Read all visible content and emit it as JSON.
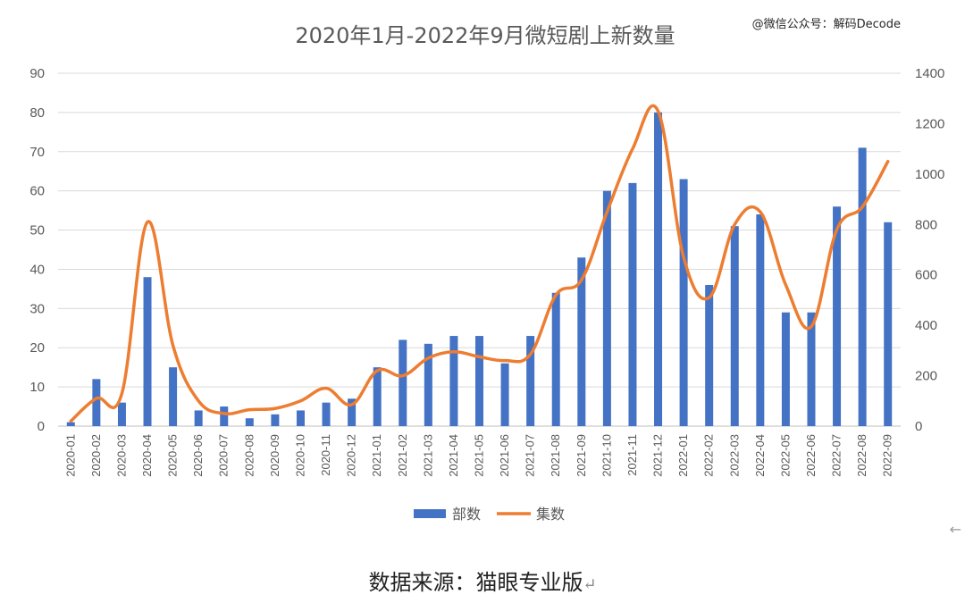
{
  "watermark": "@微信公众号：解码Decode",
  "source_note": "数据来源：猫眼专业版",
  "return_mark": "↵",
  "side_mark": "←",
  "colors": {
    "bars": "#4472C4",
    "line": "#ED7D31",
    "grid": "#D9D9D9",
    "text": "#595959"
  },
  "chart_data": {
    "type": "bar",
    "title": "2020年1月-2022年9月微短剧上新数量",
    "categories": [
      "2020-01",
      "2020-02",
      "2020-03",
      "2020-04",
      "2020-05",
      "2020-06",
      "2020-07",
      "2020-08",
      "2020-09",
      "2020-10",
      "2020-11",
      "2020-12",
      "2021-01",
      "2021-02",
      "2021-03",
      "2021-04",
      "2021-05",
      "2021-06",
      "2021-07",
      "2021-08",
      "2021-09",
      "2021-10",
      "2021-11",
      "2021-12",
      "2022-01",
      "2022-02",
      "2022-03",
      "2022-04",
      "2022-05",
      "2022-06",
      "2022-07",
      "2022-08",
      "2022-09"
    ],
    "series": [
      {
        "name": "部数",
        "type": "bar",
        "axis": "left",
        "values": [
          1,
          12,
          6,
          38,
          15,
          4,
          5,
          2,
          3,
          4,
          6,
          7,
          15,
          22,
          21,
          23,
          23,
          16,
          23,
          34,
          43,
          60,
          62,
          80,
          63,
          36,
          51,
          54,
          29,
          29,
          56,
          71,
          52
        ]
      },
      {
        "name": "集数",
        "type": "line",
        "axis": "right",
        "values": [
          20,
          110,
          130,
          810,
          320,
          100,
          50,
          65,
          70,
          100,
          150,
          85,
          220,
          200,
          270,
          295,
          275,
          260,
          285,
          520,
          580,
          850,
          1100,
          1250,
          670,
          510,
          800,
          850,
          560,
          395,
          780,
          870,
          1050
        ]
      }
    ],
    "left_axis": {
      "ylim": [
        0,
        90
      ],
      "ticks": [
        0,
        10,
        20,
        30,
        40,
        50,
        60,
        70,
        80,
        90
      ]
    },
    "right_axis": {
      "ylim": [
        0,
        1400
      ],
      "ticks": [
        0,
        200,
        400,
        600,
        800,
        1000,
        1200,
        1400
      ]
    },
    "grid": true,
    "legend": "bottom"
  }
}
